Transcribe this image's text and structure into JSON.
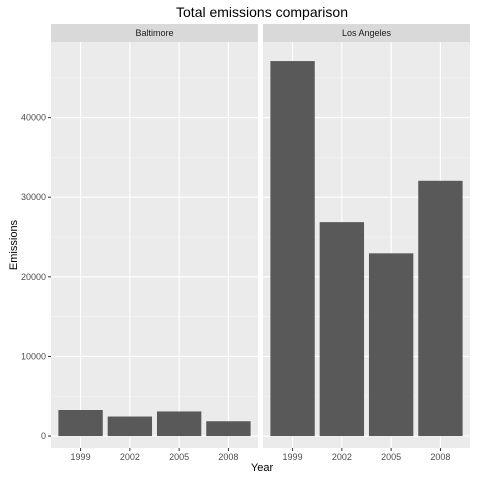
{
  "chart_data": {
    "type": "bar",
    "title": "Total emissions comparison",
    "xlabel": "Year",
    "ylabel": "Emissions",
    "categories": [
      "1999",
      "2002",
      "2005",
      "2008"
    ],
    "ylim": [
      -1500,
      49500
    ],
    "yticks": [
      0,
      10000,
      20000,
      30000,
      40000
    ],
    "ytick_labels": [
      "0",
      "10000",
      "20000",
      "30000",
      "40000"
    ],
    "grid": true,
    "legend": "none",
    "facets": [
      {
        "label": "Baltimore",
        "values": [
          3274,
          2454,
          3091,
          1862
        ]
      },
      {
        "label": "Los Angeles",
        "values": [
          47103,
          26872,
          22954,
          32065
        ]
      }
    ]
  },
  "colors": {
    "bar": "#595959",
    "panel": "#ebebeb",
    "strip": "#d9d9d9",
    "grid_major": "#ffffff",
    "grid_minor": "#f5f5f5",
    "tick": "#333333"
  }
}
